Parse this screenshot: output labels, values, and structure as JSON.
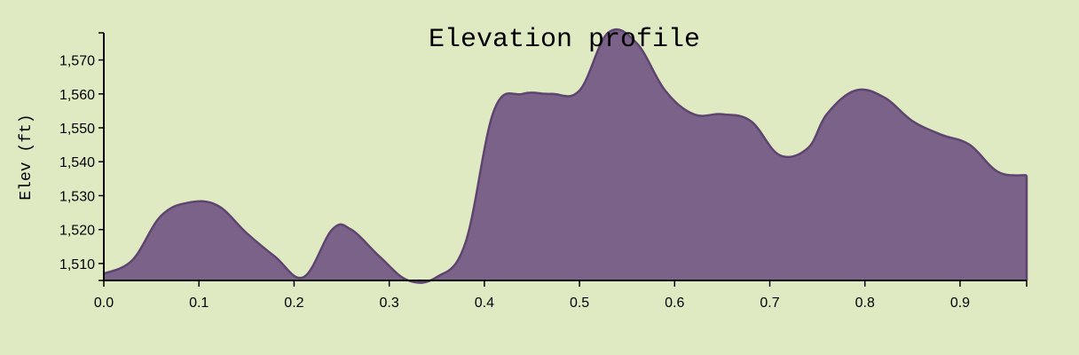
{
  "chart_data": {
    "type": "area",
    "title": "Elevation profile",
    "xlabel": "",
    "ylabel": "Elev (ft)",
    "xlim": [
      0,
      0.97
    ],
    "ylim": [
      1505,
      1578
    ],
    "x_ticks": [
      0.0,
      0.1,
      0.2,
      0.3,
      0.4,
      0.5,
      0.6,
      0.7,
      0.8,
      0.9
    ],
    "x_tick_labels": [
      "0.0",
      "0.1",
      "0.2",
      "0.3",
      "0.4",
      "0.5",
      "0.6",
      "0.7",
      "0.8",
      "0.9"
    ],
    "y_ticks": [
      1510,
      1520,
      1530,
      1540,
      1550,
      1560,
      1570
    ],
    "y_tick_labels": [
      "1,510",
      "1,520",
      "1,530",
      "1,540",
      "1,550",
      "1,560",
      "1,570"
    ],
    "grid": false,
    "series": [
      {
        "color": "#7b6288",
        "line_color": "#5e4570",
        "x": [
          0.0,
          0.03,
          0.06,
          0.09,
          0.12,
          0.15,
          0.18,
          0.21,
          0.24,
          0.26,
          0.29,
          0.32,
          0.35,
          0.38,
          0.41,
          0.44,
          0.47,
          0.5,
          0.53,
          0.56,
          0.59,
          0.62,
          0.65,
          0.68,
          0.71,
          0.74,
          0.76,
          0.79,
          0.82,
          0.85,
          0.88,
          0.91,
          0.94,
          0.97
        ],
        "y": [
          1507,
          1511,
          1524,
          1528,
          1527,
          1519,
          1512,
          1506,
          1520,
          1520,
          1512,
          1505,
          1506,
          1516,
          1555,
          1560,
          1560,
          1561,
          1578,
          1575,
          1561,
          1554,
          1554,
          1552,
          1542,
          1544,
          1554,
          1561,
          1559,
          1552,
          1548,
          1545,
          1537,
          1536
        ]
      }
    ]
  }
}
